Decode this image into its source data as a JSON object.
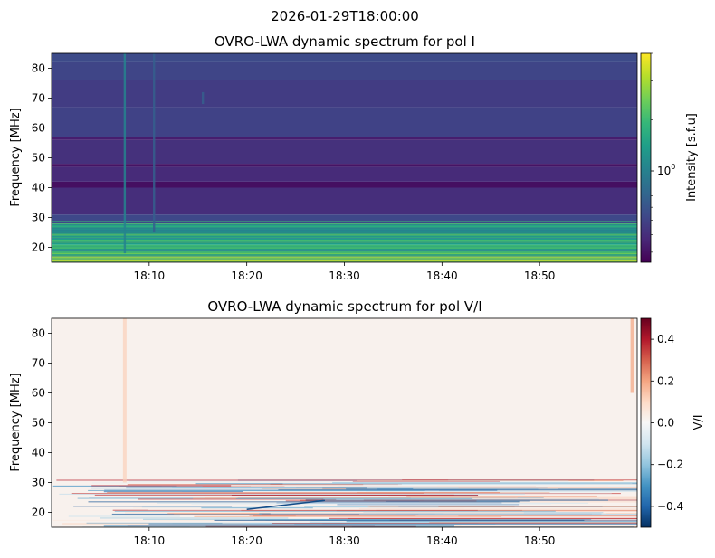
{
  "suptitle": "2026-01-29T18:00:00",
  "chart_data": [
    {
      "type": "heatmap",
      "title": "OVRO-LWA dynamic spectrum for pol I",
      "ylabel": "Frequency [MHz]",
      "xlabel": "",
      "x_range": [
        "18:00",
        "19:00"
      ],
      "x_ticks": [
        "18:10",
        "18:20",
        "18:30",
        "18:40",
        "18:50"
      ],
      "y_range": [
        15,
        85
      ],
      "y_ticks": [
        20,
        30,
        40,
        50,
        60,
        70,
        80
      ],
      "colormap": "viridis",
      "colorbar_label": "Intensity [s.f.u]",
      "colorbar_scale": "log",
      "colorbar_tick_label": "10",
      "colorbar_tick_exponent": "0",
      "colorbar_tick_value": 1,
      "colorbar_range": [
        0.45,
        4.0
      ],
      "bands": [
        {
          "f_lo": 15,
          "f_hi": 17,
          "level": 0.95
        },
        {
          "f_lo": 17,
          "f_hi": 19,
          "level": 0.72
        },
        {
          "f_lo": 19,
          "f_hi": 21,
          "level": 0.62
        },
        {
          "f_lo": 21,
          "f_hi": 23,
          "level": 0.55
        },
        {
          "f_lo": 23,
          "f_hi": 25,
          "level": 0.5
        },
        {
          "f_lo": 25,
          "f_hi": 26.5,
          "level": 0.45
        },
        {
          "f_lo": 26.5,
          "f_hi": 28,
          "level": 0.62
        },
        {
          "f_lo": 28,
          "f_hi": 31,
          "level": 0.22
        },
        {
          "f_lo": 31,
          "f_hi": 40,
          "level": 0.13
        },
        {
          "f_lo": 40,
          "f_hi": 42,
          "level": 0.04
        },
        {
          "f_lo": 42,
          "f_hi": 47,
          "level": 0.12
        },
        {
          "f_lo": 47,
          "f_hi": 48,
          "level": 0.05
        },
        {
          "f_lo": 48,
          "f_hi": 56,
          "level": 0.14
        },
        {
          "f_lo": 56,
          "f_hi": 57,
          "level": 0.08
        },
        {
          "f_lo": 57,
          "f_hi": 67,
          "level": 0.2
        },
        {
          "f_lo": 67,
          "f_hi": 76,
          "level": 0.18
        },
        {
          "f_lo": 76,
          "f_hi": 82,
          "level": 0.21
        },
        {
          "f_lo": 82,
          "f_hi": 85,
          "level": 0.23
        }
      ],
      "vertical_features": [
        {
          "time": "18:07:30",
          "f_lo": 18,
          "f_hi": 85,
          "level": 0.45
        },
        {
          "time": "18:10:30",
          "f_lo": 25,
          "f_hi": 85,
          "level": 0.3
        },
        {
          "time": "18:15:30",
          "f_lo": 68,
          "f_hi": 72,
          "level": 0.3
        }
      ]
    },
    {
      "type": "heatmap",
      "title": "OVRO-LWA dynamic spectrum for pol V/I",
      "ylabel": "Frequency [MHz]",
      "xlabel": "",
      "x_range": [
        "18:00",
        "19:00"
      ],
      "x_ticks": [
        "18:10",
        "18:20",
        "18:30",
        "18:40",
        "18:50"
      ],
      "y_range": [
        15,
        85
      ],
      "y_ticks": [
        20,
        30,
        40,
        50,
        60,
        70,
        80
      ],
      "colormap": "RdBu_r",
      "colorbar_label": "V/I",
      "colorbar_range": [
        -0.5,
        0.5
      ],
      "colorbar_ticks": [
        0.4,
        0.2,
        0.0,
        -0.2,
        -0.4
      ],
      "colorbar_tick_labels": [
        "0.4",
        "0.2",
        "0.0",
        "−0.2",
        "−0.4"
      ],
      "background_value": 0.02,
      "vertical_features": [
        {
          "time": "18:07:30",
          "f_lo": 30,
          "f_hi": 85,
          "value": 0.12
        },
        {
          "time": "18:59:30",
          "f_lo": 60,
          "f_hi": 85,
          "value": 0.2
        }
      ],
      "noisy_range": [
        15,
        31
      ],
      "drift_feature": {
        "t_start": "18:20",
        "t_end": "18:28",
        "f_start": 21,
        "f_end": 24,
        "value": -0.45
      }
    }
  ]
}
